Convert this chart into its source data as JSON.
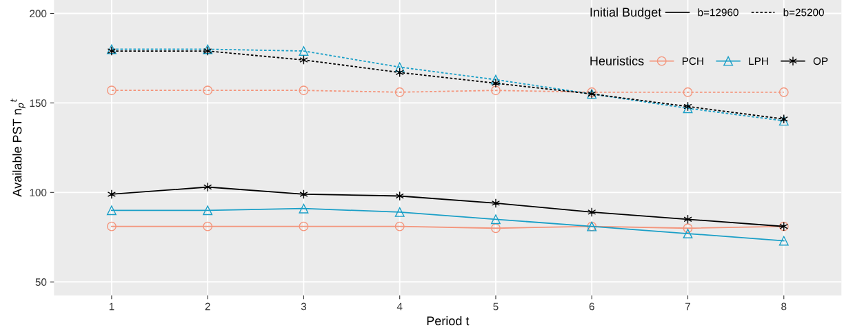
{
  "chart_data": {
    "type": "line",
    "xlabel": "Period t",
    "ylabel": "Available PST n$_{p}$$^{t}$",
    "x": [
      1,
      2,
      3,
      4,
      5,
      6,
      7,
      8
    ],
    "xlim": [
      0.4,
      8.6
    ],
    "xticks": [
      1,
      2,
      3,
      4,
      5,
      6,
      7,
      8
    ],
    "ylim": [
      42.5,
      207.5
    ],
    "yticks": [
      50,
      100,
      150,
      200
    ],
    "grid": true,
    "legend": "top right",
    "legend_title": "Heuristics",
    "annotations": [
      "Initial Budget",
      "b=12960",
      "b=25200"
    ],
    "series": [
      {
        "name": "PCH",
        "color": "#f4957c",
        "marker": "circle",
        "line_style": "solid",
        "values": [
          81,
          81,
          81,
          81,
          80,
          81,
          80,
          81
        ]
      },
      {
        "name": "LPH",
        "color": "#1a9fc7",
        "marker": "triangle",
        "line_style": "solid",
        "values": [
          90,
          90,
          91,
          89,
          85,
          81,
          77,
          73
        ]
      },
      {
        "name": "OP",
        "color": "#000000",
        "marker": "cross",
        "line_style": "solid",
        "values": [
          99,
          103,
          99,
          98,
          94,
          89,
          85,
          81
        ]
      },
      {
        "color": "#f4957c",
        "marker": "circle",
        "line_style": "dotted",
        "values": [
          157,
          157,
          157,
          156,
          157,
          156,
          156,
          156
        ]
      },
      {
        "color": "#1a9fc7",
        "marker": "triangle",
        "line_style": "dotted",
        "values": [
          180,
          180,
          179,
          170,
          163,
          155,
          147,
          140
        ]
      },
      {
        "color": "#000000",
        "marker": "cross",
        "line_style": "dotted",
        "values": [
          179,
          179,
          174,
          167,
          161,
          155,
          148,
          141
        ]
      }
    ]
  }
}
